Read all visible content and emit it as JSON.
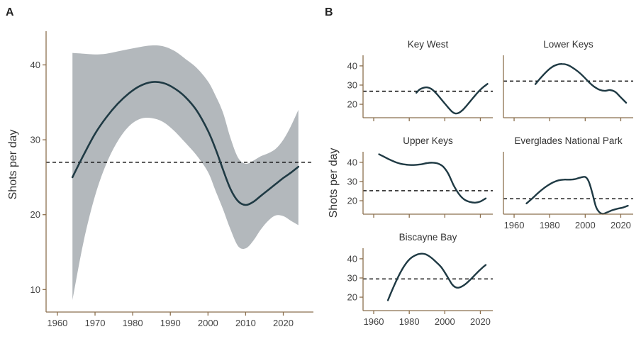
{
  "colors": {
    "axis": "#8b6f4e",
    "line": "#1f3a44",
    "band": "#b3b8bc",
    "reference": "#000000",
    "text": "#444444"
  },
  "panels": {
    "a_letter": "A",
    "b_letter": "B"
  },
  "chart_data": [
    {
      "panel": "A",
      "type": "line",
      "ylabel": "Shots per day",
      "xlabel": "",
      "xlim": [
        1957,
        2028
      ],
      "ylim": [
        7,
        44.5
      ],
      "xticks": [
        1960,
        1970,
        1980,
        1990,
        2000,
        2010,
        2020
      ],
      "yticks": [
        10,
        20,
        30,
        40
      ],
      "reference_line": 27,
      "grid": false,
      "series": [
        {
          "x": [
            1964,
            1967,
            1970,
            1973,
            1976,
            1979,
            1982,
            1985,
            1988,
            1991,
            1994,
            1997,
            2000,
            2002,
            2004,
            2006,
            2008,
            2010,
            2012,
            2014,
            2016,
            2018,
            2020,
            2022,
            2024
          ],
          "y": [
            25.0,
            28.0,
            30.8,
            33.0,
            34.8,
            36.2,
            37.2,
            37.7,
            37.6,
            36.9,
            35.7,
            33.9,
            31.2,
            28.8,
            26.0,
            23.4,
            21.8,
            21.3,
            21.7,
            22.5,
            23.3,
            24.1,
            24.9,
            25.6,
            26.4
          ],
          "lower": [
            8.6,
            16.5,
            22.5,
            26.8,
            29.8,
            31.8,
            32.8,
            32.9,
            32.4,
            31.2,
            29.6,
            27.9,
            25.7,
            23.2,
            20.7,
            18.0,
            15.8,
            15.5,
            16.5,
            18.0,
            19.2,
            19.9,
            19.8,
            19.2,
            18.6
          ],
          "upper": [
            41.6,
            41.5,
            41.4,
            41.5,
            41.8,
            42.1,
            42.4,
            42.6,
            42.5,
            41.9,
            40.8,
            39.6,
            37.8,
            35.9,
            33.6,
            30.2,
            27.6,
            26.8,
            27.2,
            27.8,
            28.2,
            28.8,
            30.0,
            31.8,
            34.0
          ]
        }
      ]
    },
    {
      "panel": "B",
      "type": "line",
      "ylabel": "Shots per day",
      "xticks": [
        1960,
        1980,
        2000,
        2020
      ],
      "yticks": [
        20,
        30,
        40
      ],
      "xlim": [
        1954,
        2027
      ],
      "ylim": [
        13,
        45.5
      ],
      "facets": [
        {
          "title": "Key West",
          "reference_line": 26.8,
          "x": [
            1984,
            1986,
            1988,
            1990,
            1992,
            1994,
            1996,
            1998,
            2000,
            2002,
            2004,
            2006,
            2008,
            2010,
            2012,
            2014,
            2016,
            2018,
            2020,
            2022,
            2024
          ],
          "y": [
            26.0,
            27.8,
            28.6,
            28.8,
            28.2,
            26.8,
            24.8,
            22.6,
            20.4,
            18.2,
            16.2,
            15.2,
            15.6,
            17.0,
            19.0,
            21.2,
            23.4,
            25.6,
            27.6,
            29.2,
            30.6
          ]
        },
        {
          "title": "Lower Keys",
          "reference_line": 32.1,
          "x": [
            1972,
            1975,
            1978,
            1981,
            1984,
            1987,
            1990,
            1993,
            1996,
            1999,
            2002,
            2005,
            2008,
            2011,
            2014,
            2017,
            2020,
            2023
          ],
          "y": [
            30.5,
            33.8,
            36.8,
            39.2,
            40.6,
            41.0,
            40.5,
            39.0,
            37.0,
            34.5,
            31.6,
            29.2,
            27.6,
            27.0,
            27.4,
            26.4,
            23.6,
            20.8
          ]
        },
        {
          "title": "Upper Keys",
          "reference_line": 25.2,
          "x": [
            1963,
            1966,
            1969,
            1972,
            1975,
            1978,
            1981,
            1984,
            1987,
            1990,
            1993,
            1996,
            1999,
            2002,
            2005,
            2008,
            2011,
            2014,
            2017,
            2020,
            2023
          ],
          "y": [
            44.2,
            42.8,
            41.4,
            40.2,
            39.3,
            38.8,
            38.6,
            38.7,
            39.0,
            39.6,
            39.8,
            39.4,
            37.8,
            34.0,
            28.0,
            23.4,
            20.6,
            19.4,
            19.0,
            19.6,
            21.2
          ]
        },
        {
          "title": "Everglades National Park",
          "reference_line": 21.0,
          "x": [
            1967,
            1970,
            1973,
            1976,
            1979,
            1982,
            1985,
            1988,
            1991,
            1994,
            1997,
            2000,
            2002,
            2004,
            2006,
            2008,
            2010,
            2012,
            2015,
            2018,
            2021,
            2024
          ],
          "y": [
            18.6,
            21.0,
            23.6,
            26.0,
            28.0,
            29.6,
            30.6,
            31.0,
            31.0,
            31.2,
            32.0,
            32.4,
            30.0,
            24.0,
            17.0,
            14.0,
            13.2,
            13.8,
            15.0,
            15.8,
            16.4,
            17.4
          ]
        },
        {
          "title": "Biscayne Bay",
          "reference_line": 29.5,
          "x": [
            1968,
            1971,
            1974,
            1977,
            1980,
            1983,
            1986,
            1989,
            1992,
            1995,
            1998,
            2001,
            2004,
            2006,
            2008,
            2011,
            2014,
            2017,
            2020,
            2023
          ],
          "y": [
            18.4,
            25.0,
            31.0,
            36.0,
            39.6,
            41.6,
            42.6,
            42.4,
            40.8,
            38.4,
            35.6,
            31.4,
            26.8,
            25.2,
            25.0,
            26.4,
            28.8,
            31.6,
            34.4,
            36.8
          ]
        }
      ]
    }
  ]
}
